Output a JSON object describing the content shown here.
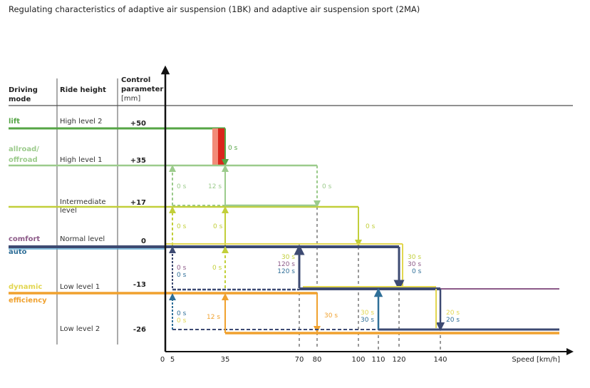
{
  "title": "Regulating characteristics of adaptive air suspension (1BK) and adaptive air suspension sport (2MA)",
  "headers": {
    "driving_mode": [
      "Driving",
      "mode"
    ],
    "ride_height": "Ride height",
    "control_parameter": [
      "Control",
      "parameter",
      "[mm]"
    ]
  },
  "modes": {
    "lift": "lift",
    "allroad": [
      "allroad/",
      "offroad"
    ],
    "comfort": "comfort",
    "auto": "auto",
    "dynamic": "dynamic",
    "efficiency": "efficiency"
  },
  "ride_heights": {
    "high2": "High level 2",
    "high1": "High level 1",
    "intermediate": [
      "Intermediate",
      "level"
    ],
    "normal": "Normal level",
    "low1": "Low level 1",
    "low2": "Low level 2"
  },
  "control_params": {
    "high2": "+50",
    "high1": "+35",
    "intermediate": "+17",
    "normal": "0",
    "low1": "-13",
    "low2": "-26"
  },
  "x_ticks": [
    "0",
    "5",
    "35",
    "70",
    "80",
    "100",
    "110",
    "120",
    "140"
  ],
  "x_label": "Speed [km/h]",
  "times": {
    "lift_down": "0 s",
    "allroad_down": "0 s",
    "allroad_up5": "0 s",
    "allroad_up35": "12 s",
    "inter_down": "0 s",
    "inter_up5": "0 s",
    "inter_up35": "0 s",
    "normal_up5_comfort": "0 s",
    "normal_up5_auto": "0 s",
    "normal_up35_dynamic": "0 s",
    "up70_dynamic": "30 s",
    "up70_comfort": "120 s",
    "up70_auto": "120 s",
    "down120_dynamic": "30 s",
    "down120_comfort": "30 s",
    "down120_auto": "0 s",
    "low2_up5_auto": "0 s",
    "low2_up5_dynamic": "0 s",
    "low2_up35_eff": "12 s",
    "down80_eff": "30 s",
    "up110_dynamic": "30 s",
    "up110_auto": "30 s",
    "down140_dynamic": "20 s",
    "down140_auto": "20 s"
  },
  "colors": {
    "lift": "#55a545",
    "allroad": "#9ccb8c",
    "intermediate": "#c2cf3a",
    "comfort": "#8c5a88",
    "auto": "#2f6f98",
    "dynamic": "#e2d650",
    "efficiency": "#f0a12e",
    "navy": "#3d4a72",
    "red": "#d9261c",
    "lightred": "#f28b78"
  }
}
